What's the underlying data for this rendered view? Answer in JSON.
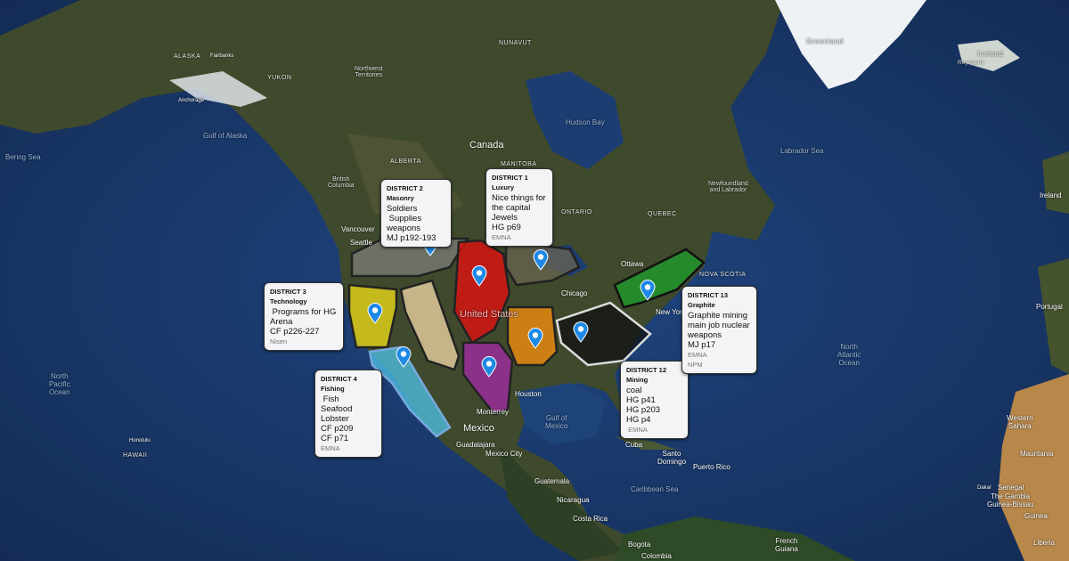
{
  "colors": {
    "ocean": "#1b3a6b",
    "land": "#3e4a2c",
    "pin": "#1e88e5"
  },
  "labels": {
    "greenland": "Greenland",
    "iceland": "Iceland",
    "canada": "Canada",
    "united_states": "United States",
    "mexico": "Mexico",
    "north_pacific": "North\nPacific\nOcean",
    "north_atlantic": "North\nAtlantic\nOcean",
    "hudson_bay": "Hudson Bay",
    "labrador_sea": "Labrador Sea",
    "gulf_of_alaska": "Gulf of Alaska",
    "bering_sea": "Bering Sea",
    "gulf_of_mexico": "Gulf of\nMexico",
    "caribbean_sea": "Caribbean Sea",
    "alaska": "Alaska",
    "yukon": "Yukon",
    "nwt": "Northwest\nTerritories",
    "nunavut": "Nunavut",
    "alberta": "Alberta",
    "bc": "British\nColumbia",
    "manitoba": "Manitoba",
    "ontario": "Ontario",
    "quebec": "Quebec",
    "newfoundland": "Newfoundland\nand Labrador",
    "nova_scotia": "Nova Scotia",
    "vancouver": "Vancouver",
    "seattle": "Seattle",
    "ottawa": "Ottawa",
    "new_york": "New York",
    "chicago": "Chicago",
    "houston": "Houston",
    "monterrey": "Monterrey",
    "guadalajara": "Guadalajara",
    "mexico_city": "Mexico City",
    "cuba": "Cuba",
    "guatemala": "Guatemala",
    "nicaragua": "Nicaragua",
    "costa_rica": "Costa Rica",
    "puerto_rico": "Puerto Rico",
    "santo_domingo": "Santo\nDomingo",
    "colombia": "Colombia",
    "bogota": "Bogota",
    "french_guiana": "French\nGuiana",
    "ireland": "Ireland",
    "portugal": "Portugal",
    "western_sahara": "Western\nSahara",
    "mauritania": "Mauritania",
    "senegal": "Senegal",
    "gambia": "The Gambia",
    "guinea_bissau": "Guinea-Bissau",
    "guinea": "Guinea",
    "liberia": "Liberia",
    "dakar": "Dakar",
    "honolulu": "Honolulu",
    "hawaii": "Hawaii",
    "anchorage": "Anchorage",
    "fairbanks": "Fairbanks",
    "reykjavik": "Reykjavik"
  },
  "districts": [
    {
      "title": "DISTRICT 1 Luxury",
      "lines": [
        "Nice things for",
        "the capital",
        "Jewels",
        "HG p69"
      ],
      "sources": [
        "EMNA"
      ],
      "color": "#e01010"
    },
    {
      "title": "DISTRICT 2 Masonry",
      "lines": [
        "Soldiers",
        " Supplies",
        "weapons",
        "MJ p192-193"
      ],
      "sources": [],
      "color": "#777777"
    },
    {
      "title": "DISTRICT 3 Technology",
      "lines": [
        " Programs for HG",
        "Arena",
        "CF p226-227"
      ],
      "sources": [
        "Nisen"
      ],
      "color": "#e6d619"
    },
    {
      "title": "DISTRICT 4 Fishing",
      "lines": [
        " Fish",
        "Seafood",
        "Lobster",
        "CF p209",
        "CF p71"
      ],
      "sources": [
        "EMNA"
      ],
      "color": "#4fc3e8"
    },
    {
      "title": "DISTRICT 12 Mining",
      "lines": [
        "coal",
        "HG p41",
        "HG p203",
        "HG p4"
      ],
      "sources": [
        " EMNA"
      ],
      "color": "#111111"
    },
    {
      "title": "DISTRICT 13 Graphite",
      "lines": [
        "Graphite mining",
        "main job nuclear",
        "weapons",
        "MJ p17"
      ],
      "sources": [
        "EMNA",
        "NPM"
      ],
      "color": "#1f9a2a"
    }
  ]
}
